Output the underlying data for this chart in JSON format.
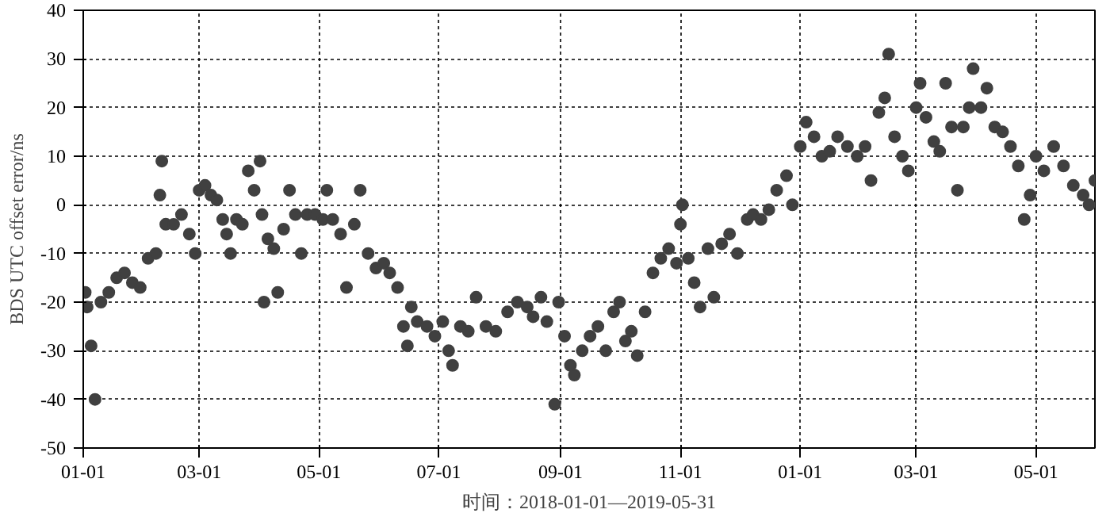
{
  "chart_data": {
    "type": "scatter",
    "xlabel": "时间：2018-01-01—2019-05-31",
    "ylabel": "BDS UTC offset error/ns",
    "color": "#404040",
    "marker": "circle",
    "grid": true,
    "xlim": [
      "2018-01-01",
      "2019-05-31"
    ],
    "xticks": [
      {
        "value": "2018-01-01",
        "label": "01-01"
      },
      {
        "value": "2018-03-01",
        "label": "03-01"
      },
      {
        "value": "2018-05-01",
        "label": "05-01"
      },
      {
        "value": "2018-07-01",
        "label": "07-01"
      },
      {
        "value": "2018-09-01",
        "label": "09-01"
      },
      {
        "value": "2018-11-01",
        "label": "11-01"
      },
      {
        "value": "2019-01-01",
        "label": "01-01"
      },
      {
        "value": "2019-03-01",
        "label": "03-01"
      },
      {
        "value": "2019-05-01",
        "label": "05-01"
      }
    ],
    "ylim": [
      -50,
      40
    ],
    "yticks": [
      -50,
      -40,
      -30,
      -20,
      -10,
      0,
      10,
      20,
      30,
      40
    ],
    "x": [
      "2018-01-02",
      "2018-01-03",
      "2018-01-05",
      "2018-01-07",
      "2018-01-10",
      "2018-01-14",
      "2018-01-18",
      "2018-01-22",
      "2018-01-26",
      "2018-01-30",
      "2018-02-03",
      "2018-02-07",
      "2018-02-09",
      "2018-02-10",
      "2018-02-12",
      "2018-02-16",
      "2018-02-20",
      "2018-02-24",
      "2018-02-27",
      "2018-03-01",
      "2018-03-04",
      "2018-03-07",
      "2018-03-10",
      "2018-03-13",
      "2018-03-15",
      "2018-03-17",
      "2018-03-20",
      "2018-03-23",
      "2018-03-26",
      "2018-03-29",
      "2018-04-01",
      "2018-04-02",
      "2018-04-03",
      "2018-04-05",
      "2018-04-08",
      "2018-04-10",
      "2018-04-13",
      "2018-04-16",
      "2018-04-19",
      "2018-04-22",
      "2018-04-25",
      "2018-04-29",
      "2018-05-03",
      "2018-05-05",
      "2018-05-08",
      "2018-05-12",
      "2018-05-15",
      "2018-05-19",
      "2018-05-22",
      "2018-05-26",
      "2018-05-30",
      "2018-06-03",
      "2018-06-06",
      "2018-06-10",
      "2018-06-13",
      "2018-06-15",
      "2018-06-17",
      "2018-06-20",
      "2018-06-25",
      "2018-06-29",
      "2018-07-03",
      "2018-07-06",
      "2018-07-08",
      "2018-07-12",
      "2018-07-16",
      "2018-07-20",
      "2018-07-25",
      "2018-07-30",
      "2018-08-05",
      "2018-08-10",
      "2018-08-15",
      "2018-08-18",
      "2018-08-22",
      "2018-08-25",
      "2018-08-29",
      "2018-08-31",
      "2018-09-03",
      "2018-09-06",
      "2018-09-08",
      "2018-09-12",
      "2018-09-16",
      "2018-09-20",
      "2018-09-24",
      "2018-09-28",
      "2018-10-01",
      "2018-10-04",
      "2018-10-07",
      "2018-10-10",
      "2018-10-14",
      "2018-10-18",
      "2018-10-22",
      "2018-10-26",
      "2018-10-30",
      "2018-11-01",
      "2018-11-02",
      "2018-11-05",
      "2018-11-08",
      "2018-11-11",
      "2018-11-15",
      "2018-11-18",
      "2018-11-22",
      "2018-11-26",
      "2018-11-30",
      "2018-12-05",
      "2018-12-08",
      "2018-12-12",
      "2018-12-16",
      "2018-12-20",
      "2018-12-25",
      "2018-12-28",
      "2019-01-01",
      "2019-01-04",
      "2019-01-08",
      "2019-01-12",
      "2019-01-16",
      "2019-01-20",
      "2019-01-25",
      "2019-01-30",
      "2019-02-03",
      "2019-02-06",
      "2019-02-10",
      "2019-02-13",
      "2019-02-15",
      "2019-02-18",
      "2019-02-22",
      "2019-02-25",
      "2019-03-01",
      "2019-03-03",
      "2019-03-06",
      "2019-03-10",
      "2019-03-13",
      "2019-03-16",
      "2019-03-19",
      "2019-03-22",
      "2019-03-25",
      "2019-03-28",
      "2019-03-30",
      "2019-04-03",
      "2019-04-06",
      "2019-04-10",
      "2019-04-14",
      "2019-04-18",
      "2019-04-22",
      "2019-04-25",
      "2019-04-28",
      "2019-05-01",
      "2019-05-05",
      "2019-05-10",
      "2019-05-15",
      "2019-05-20",
      "2019-05-25",
      "2019-05-28",
      "2019-05-31"
    ],
    "values": [
      -18,
      -21,
      -29,
      -40,
      -20,
      -18,
      -15,
      -14,
      -16,
      -17,
      -11,
      -10,
      2,
      9,
      -4,
      -4,
      -2,
      -6,
      -10,
      3,
      4,
      2,
      1,
      -3,
      -6,
      -10,
      -3,
      -4,
      7,
      3,
      9,
      -2,
      -20,
      -7,
      -9,
      -18,
      -5,
      3,
      -2,
      -10,
      -2,
      -2,
      -3,
      3,
      -3,
      -6,
      -17,
      -4,
      3,
      -10,
      -13,
      -12,
      -14,
      -17,
      -25,
      -29,
      -21,
      -24,
      -25,
      -27,
      -24,
      -30,
      -33,
      -25,
      -26,
      -19,
      -25,
      -26,
      -22,
      -20,
      -21,
      -23,
      -19,
      -24,
      -41,
      -20,
      -27,
      -33,
      -35,
      -30,
      -27,
      -25,
      -30,
      -22,
      -20,
      -28,
      -26,
      -31,
      -22,
      -14,
      -11,
      -9,
      -12,
      -4,
      0,
      -11,
      -16,
      -21,
      -9,
      -19,
      -8,
      -6,
      -10,
      -3,
      -2,
      -3,
      -1,
      3,
      6,
      0,
      12,
      17,
      14,
      10,
      11,
      14,
      12,
      10,
      12,
      5,
      19,
      22,
      31,
      14,
      10,
      7,
      20,
      25,
      18,
      13,
      11,
      25,
      16,
      3,
      16,
      20,
      28,
      20,
      24,
      16,
      15,
      12,
      8,
      -3,
      2,
      10,
      7,
      12,
      8,
      4,
      2,
      0,
      5
    ]
  }
}
